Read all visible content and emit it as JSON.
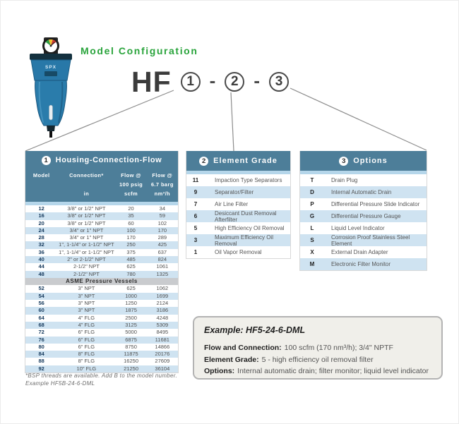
{
  "header": {
    "title": "Model Configuration",
    "model_prefix": "HF",
    "digit1": "1",
    "digit2": "2",
    "digit3": "3",
    "dash": "-"
  },
  "product": {
    "brand": "SPX"
  },
  "colors": {
    "table_header_bg": "#4d7e99",
    "row_stripe": "#cfe3f1",
    "spacer_strip": "#b5d6ea",
    "asme_band_bg": "#c9cbce",
    "accent_green": "#2aa43c",
    "example_bg": "#f0efea",
    "product_blue": "#2878a8"
  },
  "table1": {
    "badge": "1",
    "title": "Housing-Connection-Flow",
    "header": {
      "c1": [
        "Model",
        "",
        ""
      ],
      "c2": [
        "Connection*",
        "",
        "in"
      ],
      "c3": [
        "Flow @",
        "100 psig",
        "scfm"
      ],
      "c4": [
        "Flow @",
        "6.7 barg",
        "nm³/h"
      ]
    },
    "rows": [
      [
        "12",
        "3/8\" or 1/2\" NPT",
        "20",
        "34"
      ],
      [
        "16",
        "3/8\" or 1/2\" NPT",
        "35",
        "59"
      ],
      [
        "20",
        "3/8\" or 1/2\" NPT",
        "60",
        "102"
      ],
      [
        "24",
        "3/4\" or 1\" NPT",
        "100",
        "170"
      ],
      [
        "28",
        "3/4\" or 1\" NPT",
        "170",
        "289"
      ],
      [
        "32",
        "1\", 1-1/4\" or 1-1/2\" NPT",
        "250",
        "425"
      ],
      [
        "36",
        "1\", 1-1/4\" or 1-1/2\" NPT",
        "375",
        "637"
      ],
      [
        "40",
        "2\" or 2-1/2\" NPT",
        "485",
        "824"
      ],
      [
        "44",
        "2-1/2\" NPT",
        "625",
        "1061"
      ],
      [
        "48",
        "2-1/2\" NPT",
        "780",
        "1325"
      ]
    ],
    "section_label": "ASME Pressure Vessels",
    "asme_rows": [
      [
        "52",
        "3\" NPT",
        "625",
        "1062"
      ],
      [
        "54",
        "3\" NPT",
        "1000",
        "1699"
      ],
      [
        "56",
        "3\" NPT",
        "1250",
        "2124"
      ],
      [
        "60",
        "3\" NPT",
        "1875",
        "3186"
      ],
      [
        "64",
        "4\" FLG",
        "2500",
        "4248"
      ],
      [
        "68",
        "4\" FLG",
        "3125",
        "5309"
      ],
      [
        "72",
        "6\" FLG",
        "5000",
        "8495"
      ],
      [
        "76",
        "6\" FLG",
        "6875",
        "11681"
      ],
      [
        "80",
        "6\" FLG",
        "8750",
        "14866"
      ],
      [
        "84",
        "8\" FLG",
        "11875",
        "20176"
      ],
      [
        "88",
        "8\" FLG",
        "16250",
        "27609"
      ],
      [
        "92",
        "10\" FLG",
        "21250",
        "36104"
      ]
    ]
  },
  "table2": {
    "badge": "2",
    "title": "Element Grade",
    "rows": [
      [
        "11",
        "Impaction Type Separators"
      ],
      [
        "9",
        "Separator/Filter"
      ],
      [
        "7",
        "Air Line Filter"
      ],
      [
        "6",
        "Desiccant Dust Removal Afterfilter"
      ],
      [
        "5",
        "High Efficiency Oil Removal"
      ],
      [
        "3",
        "Maximum Efficiency Oil Removal"
      ],
      [
        "1",
        "Oil Vapor Removal"
      ]
    ]
  },
  "table3": {
    "badge": "3",
    "title": "Options",
    "rows": [
      [
        "T",
        "Drain Plug"
      ],
      [
        "D",
        "Internal Automatic Drain"
      ],
      [
        "P",
        "Differential Pressure Slide Indicator"
      ],
      [
        "G",
        "Differential Pressure Gauge"
      ],
      [
        "L",
        "Liquid Level Indicator"
      ],
      [
        "S",
        "Corrosion Proof Stainless Steel Element"
      ],
      [
        "X",
        "External Drain Adapter"
      ],
      [
        "M",
        "Electronic Filter Monitor"
      ]
    ]
  },
  "example": {
    "title": "Example: HF5-24-6-DML",
    "lines": [
      {
        "label": "Flow and Connection:",
        "value": "100 scfm (170 nm³/h); 3/4\" NPTF"
      },
      {
        "label": "Element Grade:",
        "value": "5 - high efficiency oil removal filter"
      },
      {
        "label": "Options:",
        "value": "Internal automatic drain; filter monitor; liquid level indicator"
      }
    ]
  },
  "footnote": {
    "line1": "*BSP threads are available. Add B to the model number.",
    "line2": "Example HF5B-24-6-DML"
  }
}
